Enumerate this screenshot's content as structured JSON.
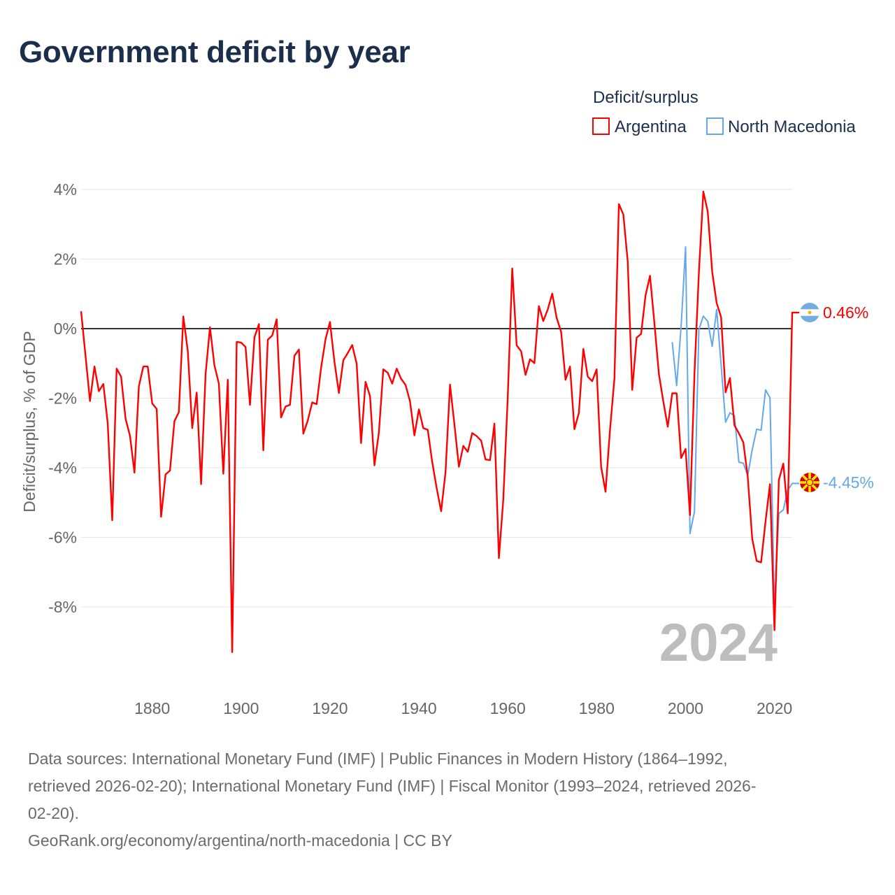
{
  "title": "Government deficit by year",
  "chart_data": {
    "type": "line",
    "title": "Government deficit by year",
    "xlabel": "",
    "ylabel": "Deficit/surplus, % of GDP",
    "xlim": [
      1864,
      2024
    ],
    "ylim": [
      -9.9,
      4.4
    ],
    "grid": true,
    "x_ticks": [
      1880,
      1900,
      1920,
      1940,
      1960,
      1980,
      2000,
      2020
    ],
    "x_tick_labels": [
      "1880",
      "1900",
      "1920",
      "1940",
      "1960",
      "1980",
      "2000",
      "2020"
    ],
    "y_ticks": [
      4,
      2,
      0,
      -2,
      -4,
      -6,
      -8
    ],
    "y_tick_labels": [
      "4%",
      "2%",
      "0%",
      "-2%",
      "-4%",
      "-6%",
      "-8%"
    ],
    "legend": {
      "title": "Deficit/surplus",
      "position": "top-right"
    },
    "year_watermark": "2024",
    "series": [
      {
        "name": "Argentina",
        "color": "#ff0000",
        "end_label": "0.46%",
        "flag": "argentina-flag",
        "start_year": 1864,
        "values": [
          0.5,
          -0.8,
          -2.08,
          -1.09,
          -1.8,
          -1.59,
          -2.73,
          -5.51,
          -1.15,
          -1.38,
          -2.59,
          -3.08,
          -4.14,
          -1.66,
          -1.09,
          -1.09,
          -2.15,
          -2.31,
          -5.41,
          -4.19,
          -4.08,
          -2.66,
          -2.4,
          0.35,
          -0.65,
          -2.86,
          -1.84,
          -4.47,
          -1.31,
          0.04,
          -1.06,
          -1.58,
          -4.17,
          -1.47,
          -9.3,
          -0.38,
          -0.4,
          -0.53,
          -2.19,
          -0.25,
          0.13,
          -3.5,
          -0.32,
          -0.2,
          0.27,
          -2.55,
          -2.24,
          -2.19,
          -0.78,
          -0.6,
          -3.02,
          -2.64,
          -2.12,
          -2.17,
          -1.13,
          -0.3,
          0.19,
          -0.95,
          -1.85,
          -0.91,
          -0.7,
          -0.47,
          -1.01,
          -3.29,
          -1.53,
          -1.94,
          -3.93,
          -2.98,
          -1.17,
          -1.27,
          -1.58,
          -1.15,
          -1.44,
          -1.62,
          -2.09,
          -3.07,
          -2.32,
          -2.86,
          -2.91,
          -3.83,
          -4.58,
          -5.25,
          -4.12,
          -1.61,
          -2.75,
          -3.97,
          -3.37,
          -3.54,
          -3.0,
          -3.09,
          -3.22,
          -3.76,
          -3.78,
          -2.73,
          -6.6,
          -4.91,
          -1.96,
          1.73,
          -0.48,
          -0.65,
          -1.33,
          -0.88,
          -0.99,
          0.65,
          0.22,
          0.55,
          1.01,
          0.31,
          -0.09,
          -1.47,
          -1.09,
          -2.89,
          -2.42,
          -0.58,
          -1.38,
          -1.51,
          -1.17,
          -3.97,
          -4.69,
          -2.91,
          -1.42,
          3.58,
          3.28,
          1.92,
          -1.76,
          -0.26,
          -0.15,
          0.95,
          1.52,
          0.14,
          -1.3,
          -2.1,
          -2.82,
          -1.86,
          -1.86,
          -3.72,
          -3.46,
          -5.36,
          -1.3,
          1.6,
          3.94,
          3.36,
          1.63,
          0.74,
          0.33,
          -1.83,
          -1.42,
          -2.78,
          -3.01,
          -3.27,
          -4.26,
          -6.04,
          -6.68,
          -6.72,
          -5.53,
          -4.47,
          -8.67,
          -4.35,
          -3.88,
          -5.31,
          0.46
        ]
      },
      {
        "name": "North Macedonia",
        "color": "#62a8ea",
        "end_label": "-4.45%",
        "flag": "north-macedonia-flag",
        "start_year": 1997,
        "values": [
          -0.39,
          -1.64,
          0.06,
          2.35,
          -5.89,
          -5.26,
          -0.03,
          0.36,
          0.21,
          -0.51,
          0.55,
          -1.04,
          -2.69,
          -2.42,
          -2.5,
          -3.84,
          -3.87,
          -4.22,
          -3.48,
          -2.89,
          -2.92,
          -1.76,
          -1.99,
          -8.03,
          -5.31,
          -5.21,
          -4.64,
          -4.45
        ]
      }
    ]
  },
  "footer": {
    "lines": [
      "Data sources: International Monetary Fund (IMF) | Public Finances in Modern History (1864–1992,",
      "retrieved 2026-02-20); International Monetary Fund (IMF) | Fiscal Monitor (1993–2024, retrieved 2026-",
      "02-20).",
      "GeoRank.org/economy/argentina/north-macedonia | CC BY"
    ]
  }
}
